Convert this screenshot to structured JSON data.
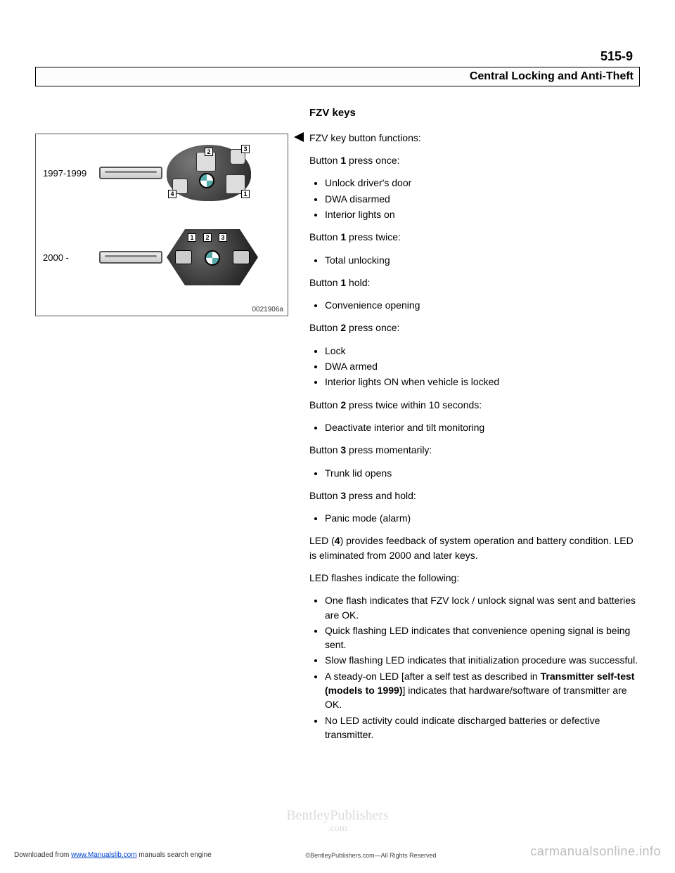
{
  "page_number": "515-9",
  "header_title": "Central Locking and Anti-Theft",
  "figure": {
    "year_label_1": "1997-1999",
    "year_label_2": "2000 -",
    "id": "0021906a",
    "callouts": {
      "n1": "1",
      "n2": "2",
      "n3": "3",
      "n4": "4"
    }
  },
  "section_title": "FZV keys",
  "lead": "FZV key button functions:",
  "groups": [
    {
      "heading_pre": "Button ",
      "heading_bold": "1",
      "heading_post": " press once:",
      "items": [
        "Unlock driver's door",
        "DWA disarmed",
        "Interior lights on"
      ]
    },
    {
      "heading_pre": "Button ",
      "heading_bold": "1",
      "heading_post": " press twice:",
      "items": [
        "Total unlocking"
      ]
    },
    {
      "heading_pre": "Button ",
      "heading_bold": "1",
      "heading_post": " hold:",
      "items": [
        "Convenience opening"
      ]
    },
    {
      "heading_pre": "Button ",
      "heading_bold": "2",
      "heading_post": " press once:",
      "items": [
        "Lock",
        "DWA armed",
        "Interior lights ON when vehicle is locked"
      ]
    },
    {
      "heading_pre": "Button ",
      "heading_bold": "2",
      "heading_post": " press twice within 10 seconds:",
      "items": [
        "Deactivate interior and tilt monitoring"
      ]
    },
    {
      "heading_pre": "Button ",
      "heading_bold": "3",
      "heading_post": " press momentarily:",
      "items": [
        "Trunk lid opens"
      ]
    },
    {
      "heading_pre": "Button ",
      "heading_bold": "3",
      "heading_post": " press and hold:",
      "items": [
        "Panic mode (alarm)"
      ]
    }
  ],
  "led_para_pre": "LED (",
  "led_para_bold": "4",
  "led_para_post": ") provides feedback of system operation and battery condition. LED is eliminated from 2000 and later keys.",
  "led_intro": "LED flashes indicate the following:",
  "led_items": [
    {
      "text": "One flash indicates that FZV lock / unlock signal was sent and batteries are OK."
    },
    {
      "text": "Quick flashing LED indicates that convenience opening signal is being sent."
    },
    {
      "text": "Slow flashing LED indicates that initialization procedure was successful."
    },
    {
      "pre": "A steady-on LED [after a self test as described in ",
      "bold": "Transmitter self-test (models to 1999)",
      "post": "] indicates that hardware/software of transmitter are OK."
    },
    {
      "text": "No LED activity could indicate discharged batteries or defective transmitter."
    }
  ],
  "watermark": {
    "line1": "BentleyPublishers",
    "line2": ".com"
  },
  "footer": {
    "left_pre": "Downloaded from ",
    "left_link": "www.Manualslib.com",
    "left_post": " manuals search engine",
    "center": "©BentleyPublishers.com—All Rights Reserved",
    "right": "carmanualsonline.info"
  }
}
